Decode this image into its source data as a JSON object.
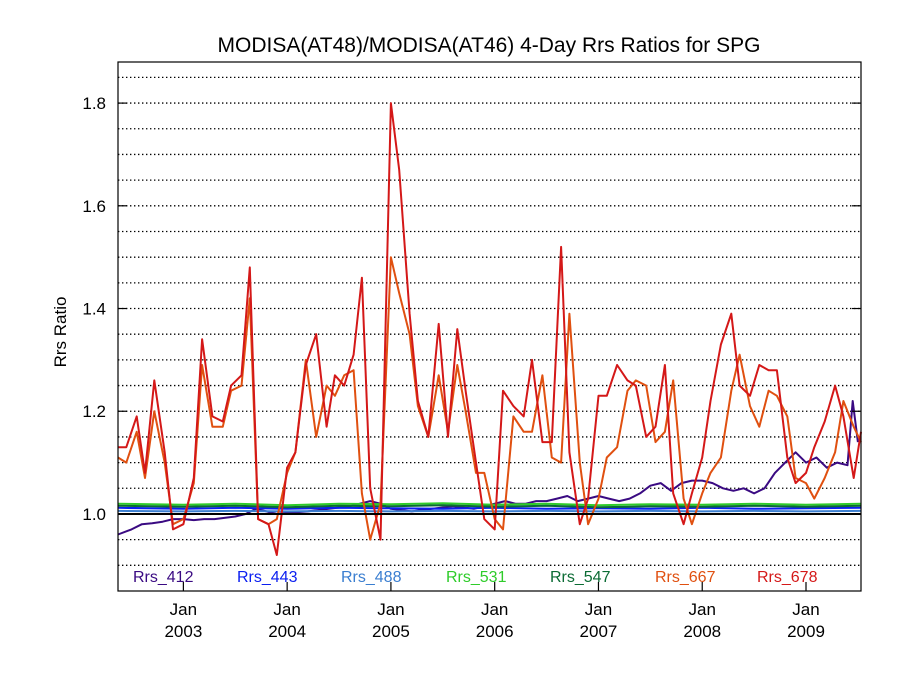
{
  "chart_data": {
    "type": "line",
    "title": "MODISA(AT48)/MODISA(AT46) 4-Day Rrs Ratios for SPG",
    "xlabel": "",
    "ylabel": "Rrs Ratio",
    "xlim": [
      2002.37,
      2009.53
    ],
    "ylim": [
      0.85,
      1.88
    ],
    "grid": true,
    "legend_position": "bottom-inside",
    "reference_line": 1.0,
    "y_ticks": [
      "1.0",
      "1.2",
      "1.4",
      "1.6",
      "1.8"
    ],
    "x_ticks": [
      {
        "month": "Jan",
        "year": "2003",
        "x": 2003.0
      },
      {
        "month": "Jan",
        "year": "2004",
        "x": 2004.0
      },
      {
        "month": "Jan",
        "year": "2005",
        "x": 2005.0
      },
      {
        "month": "Jan",
        "year": "2006",
        "x": 2006.0
      },
      {
        "month": "Jan",
        "year": "2007",
        "x": 2007.0
      },
      {
        "month": "Jan",
        "year": "2008",
        "x": 2008.0
      },
      {
        "month": "Jan",
        "year": "2009",
        "x": 2009.0
      }
    ],
    "series": [
      {
        "name": "Rrs_412",
        "color": "#3a0a82",
        "x": [
          2002.37,
          2002.5,
          2002.6,
          2002.7,
          2002.8,
          2002.9,
          2003.0,
          2003.1,
          2003.2,
          2003.3,
          2003.5,
          2003.6,
          2003.7,
          2003.8,
          2003.9,
          2004.0,
          2004.2,
          2004.4,
          2004.6,
          2004.8,
          2004.9,
          2005.0,
          2005.2,
          2005.4,
          2005.6,
          2005.8,
          2006.0,
          2006.1,
          2006.2,
          2006.3,
          2006.4,
          2006.5,
          2006.6,
          2006.7,
          2006.8,
          2006.9,
          2007.0,
          2007.1,
          2007.2,
          2007.3,
          2007.4,
          2007.5,
          2007.6,
          2007.7,
          2007.8,
          2007.9,
          2008.0,
          2008.1,
          2008.2,
          2008.3,
          2008.4,
          2008.5,
          2008.6,
          2008.7,
          2008.8,
          2008.9,
          2009.0,
          2009.1,
          2009.2,
          2009.3,
          2009.4,
          2009.45,
          2009.5
        ],
        "y": [
          0.96,
          0.97,
          0.98,
          0.982,
          0.985,
          0.99,
          0.99,
          0.988,
          0.99,
          0.99,
          0.995,
          1.0,
          1.01,
          1.005,
          1.0,
          1.002,
          1.005,
          1.01,
          1.015,
          1.025,
          1.02,
          1.01,
          1.005,
          1.01,
          1.015,
          1.01,
          1.02,
          1.025,
          1.02,
          1.02,
          1.025,
          1.025,
          1.03,
          1.035,
          1.025,
          1.03,
          1.035,
          1.03,
          1.025,
          1.03,
          1.04,
          1.055,
          1.06,
          1.045,
          1.06,
          1.065,
          1.065,
          1.06,
          1.05,
          1.045,
          1.05,
          1.04,
          1.05,
          1.08,
          1.1,
          1.12,
          1.1,
          1.11,
          1.09,
          1.1,
          1.095,
          1.22,
          1.14
        ]
      },
      {
        "name": "Rrs_443",
        "color": "#0a1ef0",
        "x": [
          2002.37,
          2003.0,
          2003.5,
          2004.0,
          2004.5,
          2005.0,
          2005.5,
          2006.0,
          2006.5,
          2007.0,
          2007.5,
          2008.0,
          2008.5,
          2009.0,
          2009.53
        ],
        "y": [
          1.012,
          1.01,
          1.012,
          1.01,
          1.012,
          1.011,
          1.01,
          1.012,
          1.01,
          1.011,
          1.01,
          1.012,
          1.01,
          1.011,
          1.012
        ]
      },
      {
        "name": "Rrs_488",
        "color": "#3a7ed0",
        "x": [
          2002.37,
          2003.0,
          2003.5,
          2004.0,
          2004.5,
          2005.0,
          2005.5,
          2006.0,
          2006.5,
          2007.0,
          2007.5,
          2008.0,
          2008.5,
          2009.0,
          2009.53
        ],
        "y": [
          1.006,
          1.005,
          1.006,
          1.005,
          1.006,
          1.005,
          1.006,
          1.005,
          1.006,
          1.005,
          1.006,
          1.005,
          1.006,
          1.005,
          1.006
        ]
      },
      {
        "name": "Rrs_531",
        "color": "#2fcc2a",
        "x": [
          2002.37,
          2003.0,
          2003.5,
          2004.0,
          2004.5,
          2005.0,
          2005.5,
          2006.0,
          2006.5,
          2007.0,
          2007.5,
          2008.0,
          2008.5,
          2009.0,
          2009.53
        ],
        "y": [
          1.02,
          1.018,
          1.02,
          1.017,
          1.02,
          1.019,
          1.021,
          1.018,
          1.02,
          1.017,
          1.019,
          1.018,
          1.02,
          1.018,
          1.02
        ]
      },
      {
        "name": "Rrs_547",
        "color": "#0b6b34",
        "x": [
          2002.37,
          2003.0,
          2003.5,
          2004.0,
          2004.5,
          2005.0,
          2005.5,
          2006.0,
          2006.5,
          2007.0,
          2007.5,
          2008.0,
          2008.5,
          2009.0,
          2009.53
        ],
        "y": [
          1.016,
          1.014,
          1.016,
          1.013,
          1.016,
          1.015,
          1.017,
          1.014,
          1.016,
          1.013,
          1.015,
          1.014,
          1.016,
          1.014,
          1.016
        ]
      },
      {
        "name": "Rrs_667",
        "color": "#e05010",
        "x": [
          2002.37,
          2002.45,
          2002.55,
          2002.63,
          2002.72,
          2002.82,
          2002.9,
          2003.0,
          2003.1,
          2003.18,
          2003.28,
          2003.38,
          2003.46,
          2003.56,
          2003.64,
          2003.72,
          2003.82,
          2003.9,
          2004.0,
          2004.08,
          2004.18,
          2004.28,
          2004.38,
          2004.46,
          2004.55,
          2004.64,
          2004.72,
          2004.8,
          2004.9,
          2005.0,
          2005.08,
          2005.18,
          2005.26,
          2005.36,
          2005.46,
          2005.55,
          2005.64,
          2005.72,
          2005.82,
          2005.9,
          2006.0,
          2006.08,
          2006.18,
          2006.28,
          2006.36,
          2006.46,
          2006.55,
          2006.64,
          2006.72,
          2006.82,
          2006.9,
          2007.0,
          2007.08,
          2007.18,
          2007.28,
          2007.36,
          2007.46,
          2007.55,
          2007.64,
          2007.72,
          2007.82,
          2007.9,
          2008.0,
          2008.08,
          2008.18,
          2008.28,
          2008.36,
          2008.46,
          2008.55,
          2008.64,
          2008.72,
          2008.82,
          2008.9,
          2009.0,
          2009.08,
          2009.18,
          2009.28,
          2009.36,
          2009.46,
          2009.53
        ],
        "y": [
          1.11,
          1.1,
          1.16,
          1.07,
          1.2,
          1.1,
          0.98,
          0.99,
          1.06,
          1.29,
          1.17,
          1.17,
          1.24,
          1.25,
          1.42,
          0.99,
          0.98,
          0.99,
          1.08,
          1.12,
          1.3,
          1.15,
          1.25,
          1.23,
          1.27,
          1.28,
          1.04,
          0.95,
          1.02,
          1.5,
          1.43,
          1.35,
          1.21,
          1.15,
          1.27,
          1.16,
          1.29,
          1.2,
          1.08,
          1.08,
          0.99,
          0.97,
          1.19,
          1.16,
          1.16,
          1.27,
          1.11,
          1.1,
          1.39,
          1.1,
          0.98,
          1.03,
          1.11,
          1.13,
          1.24,
          1.26,
          1.25,
          1.14,
          1.16,
          1.26,
          1.03,
          0.98,
          1.04,
          1.08,
          1.11,
          1.24,
          1.31,
          1.21,
          1.17,
          1.24,
          1.23,
          1.19,
          1.07,
          1.06,
          1.03,
          1.07,
          1.12,
          1.22,
          1.17,
          1.14
        ]
      },
      {
        "name": "Rrs_678",
        "color": "#d41818",
        "x": [
          2002.37,
          2002.45,
          2002.55,
          2002.63,
          2002.72,
          2002.82,
          2002.9,
          2003.0,
          2003.1,
          2003.18,
          2003.28,
          2003.38,
          2003.46,
          2003.56,
          2003.64,
          2003.72,
          2003.82,
          2003.9,
          2004.0,
          2004.08,
          2004.18,
          2004.28,
          2004.38,
          2004.46,
          2004.55,
          2004.64,
          2004.72,
          2004.8,
          2004.9,
          2005.0,
          2005.08,
          2005.18,
          2005.26,
          2005.36,
          2005.46,
          2005.55,
          2005.64,
          2005.72,
          2005.82,
          2005.9,
          2006.0,
          2006.08,
          2006.18,
          2006.28,
          2006.36,
          2006.46,
          2006.55,
          2006.64,
          2006.72,
          2006.82,
          2006.9,
          2007.0,
          2007.08,
          2007.18,
          2007.28,
          2007.36,
          2007.46,
          2007.55,
          2007.64,
          2007.72,
          2007.82,
          2007.9,
          2008.0,
          2008.08,
          2008.18,
          2008.28,
          2008.36,
          2008.46,
          2008.55,
          2008.64,
          2008.72,
          2008.82,
          2008.9,
          2009.0,
          2009.08,
          2009.18,
          2009.28,
          2009.36,
          2009.46,
          2009.53
        ],
        "y": [
          1.13,
          1.13,
          1.19,
          1.08,
          1.26,
          1.12,
          0.97,
          0.98,
          1.07,
          1.34,
          1.19,
          1.18,
          1.25,
          1.27,
          1.48,
          0.99,
          0.98,
          0.92,
          1.09,
          1.12,
          1.29,
          1.35,
          1.17,
          1.27,
          1.25,
          1.31,
          1.46,
          1.05,
          0.95,
          1.8,
          1.67,
          1.39,
          1.22,
          1.15,
          1.37,
          1.15,
          1.36,
          1.24,
          1.1,
          0.99,
          0.97,
          1.24,
          1.21,
          1.19,
          1.3,
          1.14,
          1.14,
          1.52,
          1.12,
          0.98,
          1.03,
          1.23,
          1.23,
          1.29,
          1.26,
          1.25,
          1.15,
          1.17,
          1.29,
          1.04,
          0.98,
          1.04,
          1.11,
          1.22,
          1.33,
          1.39,
          1.25,
          1.23,
          1.29,
          1.28,
          1.28,
          1.11,
          1.06,
          1.08,
          1.13,
          1.18,
          1.25,
          1.19,
          1.07,
          1.16
        ]
      }
    ]
  }
}
